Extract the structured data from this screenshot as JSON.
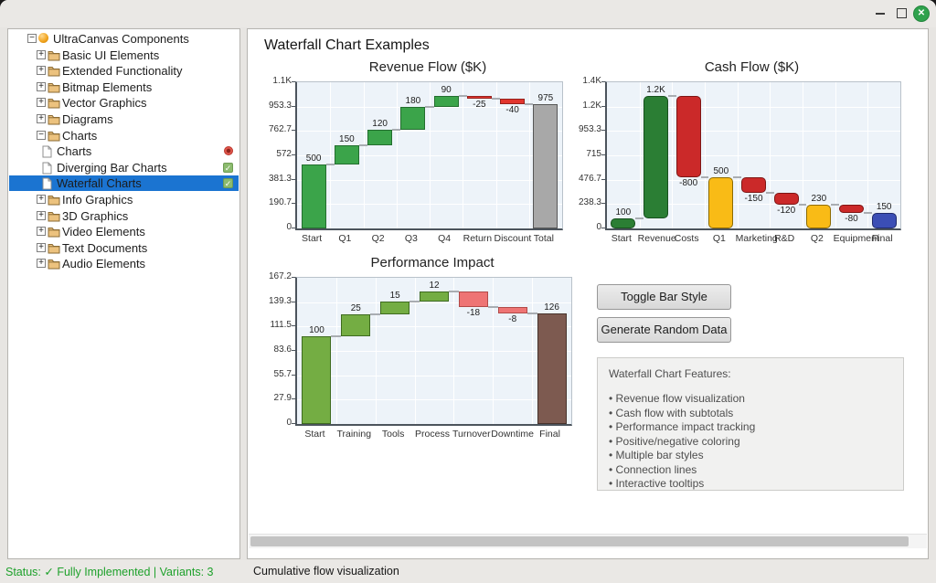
{
  "window": {
    "controls": [
      "minimize",
      "maximize",
      "close"
    ]
  },
  "sidebar": {
    "selection_color": "#1b74d1",
    "items": [
      {
        "label": "UltraCanvas Components",
        "level": 0,
        "expander": "minus",
        "icon": "app",
        "badge": null,
        "selected": false
      },
      {
        "label": "Basic UI Elements",
        "level": 1,
        "expander": "plus",
        "icon": "folder",
        "badge": null,
        "selected": false
      },
      {
        "label": "Extended Functionality",
        "level": 1,
        "expander": "plus",
        "icon": "folder",
        "badge": null,
        "selected": false
      },
      {
        "label": "Bitmap Elements",
        "level": 1,
        "expander": "plus",
        "icon": "folder",
        "badge": null,
        "selected": false
      },
      {
        "label": "Vector Graphics",
        "level": 1,
        "expander": "plus",
        "icon": "folder",
        "badge": null,
        "selected": false
      },
      {
        "label": "Diagrams",
        "level": 1,
        "expander": "plus",
        "icon": "folder",
        "badge": null,
        "selected": false
      },
      {
        "label": "Charts",
        "level": 1,
        "expander": "minus",
        "icon": "folder",
        "badge": null,
        "selected": false
      },
      {
        "label": "Charts",
        "level": 2,
        "expander": null,
        "icon": "page",
        "badge": "red",
        "selected": false
      },
      {
        "label": "Diverging Bar Charts",
        "level": 2,
        "expander": null,
        "icon": "page",
        "badge": "check",
        "selected": false
      },
      {
        "label": "Waterfall Charts",
        "level": 2,
        "expander": null,
        "icon": "page",
        "badge": "check",
        "selected": true
      },
      {
        "label": "Info Graphics",
        "level": 1,
        "expander": "plus",
        "icon": "folder",
        "badge": null,
        "selected": false
      },
      {
        "label": "3D Graphics",
        "level": 1,
        "expander": "plus",
        "icon": "folder",
        "badge": null,
        "selected": false
      },
      {
        "label": "Video Elements",
        "level": 1,
        "expander": "plus",
        "icon": "folder",
        "badge": null,
        "selected": false
      },
      {
        "label": "Text Documents",
        "level": 1,
        "expander": "plus",
        "icon": "folder",
        "badge": null,
        "selected": false
      },
      {
        "label": "Audio Elements",
        "level": 1,
        "expander": "plus",
        "icon": "folder",
        "badge": null,
        "selected": false
      }
    ]
  },
  "main": {
    "heading": "Waterfall Chart Examples",
    "buttons": [
      {
        "label": "Toggle Bar Style"
      },
      {
        "label": "Generate Random Data"
      }
    ],
    "features": {
      "title": "Waterfall Chart Features:",
      "items": [
        "Revenue flow visualization",
        "Cash flow with subtotals",
        "Performance impact tracking",
        "Positive/negative coloring",
        "Multiple bar styles",
        "Connection lines",
        "Interactive tooltips"
      ]
    }
  },
  "chart_data": [
    {
      "type": "bar",
      "subtype": "waterfall",
      "title": "Revenue Flow ($K)",
      "bar_style": "square",
      "ylim": [
        0,
        1144
      ],
      "ymax": 1144,
      "yticks": [
        "1.1K",
        "953.3",
        "762.7",
        "572",
        "381.3",
        "190.7",
        "0"
      ],
      "bars": [
        {
          "label": "Start",
          "value": 500,
          "display": "500",
          "kind": "absolute",
          "color": "#3ba44a",
          "border": "#236e2e"
        },
        {
          "label": "Q1",
          "value": 150,
          "display": "150",
          "kind": "relative",
          "color": "#3ba44a",
          "border": "#236e2e"
        },
        {
          "label": "Q2",
          "value": 120,
          "display": "120",
          "kind": "relative",
          "color": "#3ba44a",
          "border": "#236e2e"
        },
        {
          "label": "Q3",
          "value": 180,
          "display": "180",
          "kind": "relative",
          "color": "#3ba44a",
          "border": "#236e2e"
        },
        {
          "label": "Q4",
          "value": 90,
          "display": "90",
          "kind": "relative",
          "color": "#3ba44a",
          "border": "#236e2e"
        },
        {
          "label": "Return",
          "value": -25,
          "display": "-25",
          "kind": "relative",
          "color": "#e2352e",
          "border": "#96211c"
        },
        {
          "label": "Discount",
          "value": -40,
          "display": "-40",
          "kind": "relative",
          "color": "#e2352e",
          "border": "#96211c"
        },
        {
          "label": "Total",
          "value": 975,
          "display": "975",
          "kind": "absolute",
          "color": "#a8a8a8",
          "border": "#565656"
        }
      ]
    },
    {
      "type": "bar",
      "subtype": "waterfall",
      "title": "Cash Flow ($K)",
      "bar_style": "rounded",
      "ylim": [
        0,
        1430
      ],
      "ymax": 1430,
      "yticks": [
        "1.4K",
        "1.2K",
        "953.3",
        "715",
        "476.7",
        "238.3",
        "0"
      ],
      "bars": [
        {
          "label": "Start",
          "value": 100,
          "display": "100",
          "kind": "absolute",
          "color": "#2b7e34",
          "border": "#17501d"
        },
        {
          "label": "Revenue",
          "value": 1200,
          "display": "1.2K",
          "kind": "relative",
          "color": "#2b7e34",
          "border": "#17501d"
        },
        {
          "label": "Costs",
          "value": -800,
          "display": "-800",
          "kind": "relative",
          "color": "#cb2929",
          "border": "#7e1514"
        },
        {
          "label": "Q1",
          "value": 500,
          "display": "500",
          "kind": "absolute",
          "color": "#f9bb16",
          "border": "#8d6a00"
        },
        {
          "label": "Marketing",
          "value": -150,
          "display": "-150",
          "kind": "relative",
          "color": "#cb2929",
          "border": "#7e1514"
        },
        {
          "label": "R&D",
          "value": -120,
          "display": "-120",
          "kind": "relative",
          "color": "#cb2929",
          "border": "#7e1514"
        },
        {
          "label": "Q2",
          "value": 230,
          "display": "230",
          "kind": "absolute",
          "color": "#f9bb16",
          "border": "#8d6a00"
        },
        {
          "label": "Equipment",
          "value": -80,
          "display": "-80",
          "kind": "relative",
          "color": "#cb2929",
          "border": "#7e1514"
        },
        {
          "label": "Final",
          "value": 150,
          "display": "150",
          "kind": "absolute",
          "color": "#3b4eb5",
          "border": "#1f2a6b"
        }
      ]
    },
    {
      "type": "bar",
      "subtype": "waterfall",
      "title": "Performance Impact",
      "bar_style": "square",
      "ylim": [
        0,
        167.2
      ],
      "ymax": 167.2,
      "yticks": [
        "167.2",
        "139.3",
        "111.5",
        "83.6",
        "55.7",
        "27.9",
        "0"
      ],
      "bars": [
        {
          "label": "Start",
          "value": 100,
          "display": "100",
          "kind": "absolute",
          "color": "#74ad43",
          "border": "#3e6b1f"
        },
        {
          "label": "Training",
          "value": 25,
          "display": "25",
          "kind": "relative",
          "color": "#74ad43",
          "border": "#3e6b1f"
        },
        {
          "label": "Tools",
          "value": 15,
          "display": "15",
          "kind": "relative",
          "color": "#74ad43",
          "border": "#3e6b1f"
        },
        {
          "label": "Process",
          "value": 12,
          "display": "12",
          "kind": "relative",
          "color": "#74ad43",
          "border": "#3e6b1f"
        },
        {
          "label": "Turnover",
          "value": -18,
          "display": "-18",
          "kind": "relative",
          "color": "#ee7474",
          "border": "#b14a48"
        },
        {
          "label": "Downtime",
          "value": -8,
          "display": "-8",
          "kind": "relative",
          "color": "#ee7474",
          "border": "#b14a48"
        },
        {
          "label": "Final",
          "value": 126,
          "display": "126",
          "kind": "absolute",
          "color": "#7d5a50",
          "border": "#47332c"
        }
      ]
    }
  ],
  "statusbar": {
    "left": "Status: ✓ Fully Implemented | Variants: 3",
    "right": "Cumulative flow visualization"
  }
}
